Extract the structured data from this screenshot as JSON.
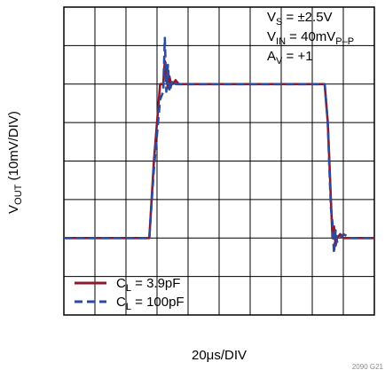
{
  "chart_data": {
    "type": "line",
    "xlabel": "20μs/DIV",
    "ylabel_main": "V",
    "ylabel_sub": "OUT",
    "ylabel_rest": " (10mV/DIV)",
    "figure_code": "2090 G21",
    "xlim": [
      0,
      200
    ],
    "ylim": [
      0,
      80
    ],
    "x_divisions": 10,
    "y_divisions": 8,
    "grid": true,
    "annotations": [
      {
        "main": "V",
        "sub": "S",
        "rest": " = ±2.5V"
      },
      {
        "main": "V",
        "sub": "IN",
        "rest": " = 40mV",
        "sub2": "P–P"
      },
      {
        "main": "A",
        "sub": "V",
        "rest": " = +1"
      }
    ],
    "series": [
      {
        "name_main": "C",
        "name_sub": "L",
        "name_rest": " = 3.9pF",
        "color": "#8b1a2e",
        "dash": "solid",
        "x": [
          0,
          20,
          40,
          55,
          58,
          62,
          64,
          65,
          66,
          67,
          68,
          69,
          70,
          72,
          74,
          76,
          80,
          90,
          120,
          150,
          160,
          165,
          168,
          170,
          171,
          172,
          173,
          174,
          175,
          176,
          178,
          180,
          185,
          190,
          200
        ],
        "y": [
          20,
          20,
          20,
          20,
          40,
          60,
          60,
          66,
          62,
          59,
          62,
          60,
          60,
          61,
          60,
          60,
          60,
          60,
          60,
          60,
          60,
          60,
          60,
          50,
          40,
          30,
          20,
          23,
          18,
          20,
          21,
          20,
          20,
          20,
          20
        ]
      },
      {
        "name_main": "C",
        "name_sub": "L",
        "name_rest": " = 100pF",
        "color": "#2c4a9e",
        "dash": "dashed",
        "x": [
          0,
          20,
          40,
          55,
          58,
          62,
          64,
          65,
          66,
          67,
          68,
          70,
          72,
          74,
          76,
          80,
          90,
          120,
          150,
          160,
          165,
          168,
          170,
          171,
          172,
          173,
          174,
          175,
          176,
          178,
          180,
          185,
          190,
          200
        ],
        "y": [
          20,
          20,
          20,
          20,
          38,
          56,
          58,
          72,
          58,
          65,
          58,
          61,
          60,
          60,
          60,
          60,
          60,
          60,
          60,
          60,
          60,
          60,
          50,
          38,
          28,
          24,
          16,
          22,
          19,
          20,
          21,
          20,
          20,
          20
        ]
      }
    ]
  }
}
